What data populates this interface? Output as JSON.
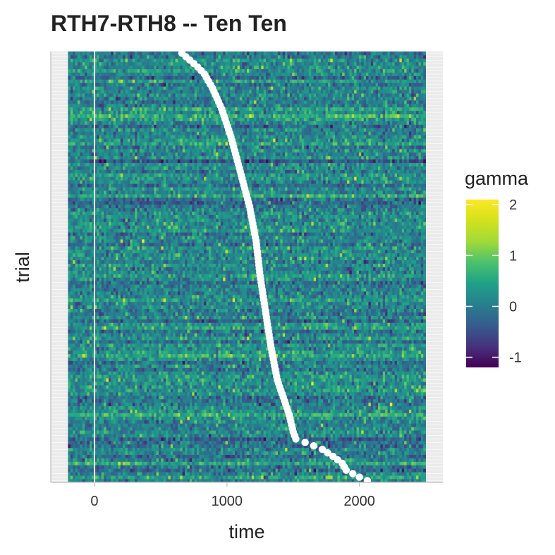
{
  "chart_data": {
    "type": "heatmap",
    "title": "RTH7-RTH8 -- Ten Ten",
    "xlabel": "time",
    "ylabel": "trial",
    "xlim": [
      -330,
      2630
    ],
    "x_ticks": [
      {
        "value": 0,
        "label": "0"
      },
      {
        "value": 1000,
        "label": "1000"
      },
      {
        "value": 2000,
        "label": "2000"
      }
    ],
    "heatmap_x_range": [
      -200,
      2500
    ],
    "n_trials": 124,
    "color_scale": {
      "name": "viridis",
      "title": "gamma",
      "range": [
        -1.2,
        2.1
      ],
      "ticks": [
        {
          "value": -1,
          "label": "-1"
        },
        {
          "value": 0,
          "label": "0"
        },
        {
          "value": 1,
          "label": "1"
        },
        {
          "value": 2,
          "label": "2"
        }
      ],
      "mean_value": 0.1,
      "low_color": "#440154",
      "high_color": "#fde725"
    },
    "reference_line": {
      "x": 0,
      "color": "#ffffff"
    },
    "response_time_markers": {
      "color": "#ffffff",
      "anchors": [
        {
          "trial": 1,
          "time": 2060
        },
        {
          "trial": 2,
          "time": 2000
        },
        {
          "trial": 4,
          "time": 1900
        },
        {
          "trial": 6,
          "time": 1870
        },
        {
          "trial": 8,
          "time": 1800
        },
        {
          "trial": 10,
          "time": 1720
        },
        {
          "trial": 12,
          "time": 1590
        },
        {
          "trial": 13,
          "time": 1520
        },
        {
          "trial": 15,
          "time": 1500
        },
        {
          "trial": 20,
          "time": 1470
        },
        {
          "trial": 30,
          "time": 1380
        },
        {
          "trial": 40,
          "time": 1330
        },
        {
          "trial": 50,
          "time": 1290
        },
        {
          "trial": 60,
          "time": 1250
        },
        {
          "trial": 70,
          "time": 1220
        },
        {
          "trial": 80,
          "time": 1170
        },
        {
          "trial": 90,
          "time": 1100
        },
        {
          "trial": 100,
          "time": 1030
        },
        {
          "trial": 108,
          "time": 960
        },
        {
          "trial": 114,
          "time": 890
        },
        {
          "trial": 118,
          "time": 830
        },
        {
          "trial": 120,
          "time": 780
        },
        {
          "trial": 122,
          "time": 720
        },
        {
          "trial": 124,
          "time": 660
        }
      ]
    },
    "legend_position": "right",
    "grid": true
  }
}
